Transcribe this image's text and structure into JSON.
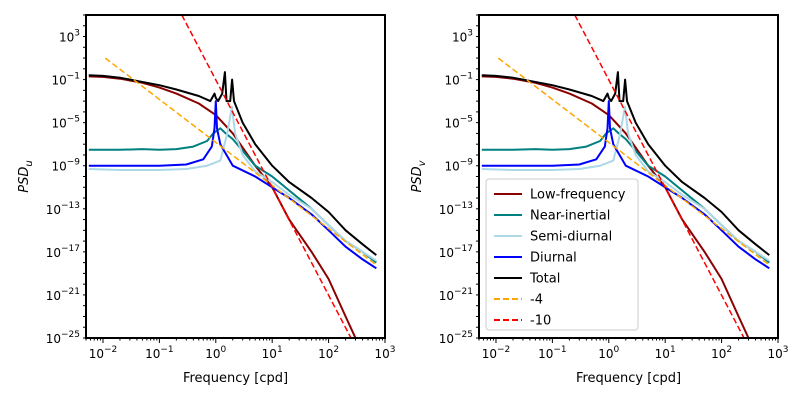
{
  "chart_data": [
    {
      "type": "line",
      "panel": "left",
      "xlabel": "Frequency [cpd]",
      "ylabel_base": "PSD",
      "ylabel_sub": "u",
      "xscale": "log",
      "yscale": "log",
      "xlim": [
        0.005,
        1000
      ],
      "ylim": [
        1e-25,
        100000.0
      ],
      "x_tick_labels": [
        {
          "value": 0.01,
          "base": "10",
          "exp": "−2"
        },
        {
          "value": 0.1,
          "base": "10",
          "exp": "−1"
        },
        {
          "value": 1,
          "base": "10",
          "exp": "0"
        },
        {
          "value": 10,
          "base": "10",
          "exp": "1"
        },
        {
          "value": 100,
          "base": "10",
          "exp": "2"
        },
        {
          "value": 1000,
          "base": "10",
          "exp": "3"
        }
      ],
      "y_tick_labels": [
        {
          "value": 1e-25,
          "base": "10",
          "exp": "−25"
        },
        {
          "value": 1e-21,
          "base": "10",
          "exp": "−21"
        },
        {
          "value": 1e-17,
          "base": "10",
          "exp": "−17"
        },
        {
          "value": 1e-13,
          "base": "10",
          "exp": "−13"
        },
        {
          "value": 1e-09,
          "base": "10",
          "exp": "−9"
        },
        {
          "value": 1e-05,
          "base": "10",
          "exp": "−5"
        },
        {
          "value": 0.1,
          "base": "10",
          "exp": "−1"
        },
        {
          "value": 1000,
          "base": "10",
          "exp": "3"
        }
      ],
      "legend": null,
      "series": [
        {
          "name": "Low-frequency",
          "color": "#8b0000",
          "style": "solid",
          "points": [
            [
              0.0056,
              0.2
            ],
            [
              0.01,
              0.18
            ],
            [
              0.02,
              0.12
            ],
            [
              0.05,
              0.05
            ],
            [
              0.1,
              0.018
            ],
            [
              0.2,
              0.005
            ],
            [
              0.5,
              0.0006
            ],
            [
              1,
              5e-05
            ],
            [
              2,
              1e-06
            ],
            [
              5,
              1e-09
            ],
            [
              10,
              1e-11
            ],
            [
              20,
              1e-14
            ],
            [
              50,
              1e-17
            ],
            [
              100,
              3e-20
            ],
            [
              200,
              1e-23
            ],
            [
              300,
              1e-25
            ]
          ]
        },
        {
          "name": "Near-inertial",
          "color": "#008080",
          "style": "solid",
          "points": [
            [
              0.0056,
              3e-08
            ],
            [
              0.02,
              3e-08
            ],
            [
              0.05,
              3.5e-08
            ],
            [
              0.1,
              3e-08
            ],
            [
              0.2,
              3.5e-08
            ],
            [
              0.4,
              6e-08
            ],
            [
              0.7,
              2e-07
            ],
            [
              0.9,
              1e-06
            ],
            [
              1.2,
              3e-06
            ],
            [
              1.5,
              1e-06
            ],
            [
              2,
              3e-07
            ],
            [
              5,
              1e-09
            ],
            [
              10,
              1e-10
            ],
            [
              20,
              5e-12
            ],
            [
              50,
              1e-13
            ],
            [
              100,
              3e-15
            ],
            [
              200,
              1e-16
            ],
            [
              400,
              1e-17
            ],
            [
              700,
              1e-18
            ]
          ]
        },
        {
          "name": "Semi-diurnal",
          "color": "#add8e6",
          "style": "solid",
          "points": [
            [
              0.0056,
              5e-10
            ],
            [
              0.02,
              4e-10
            ],
            [
              0.1,
              4e-10
            ],
            [
              0.3,
              5e-10
            ],
            [
              0.7,
              1e-09
            ],
            [
              1.2,
              3e-09
            ],
            [
              1.6,
              1e-06
            ],
            [
              1.93,
              0.0003
            ],
            [
              2.2,
              1e-06
            ],
            [
              3,
              1e-08
            ],
            [
              5,
              3e-10
            ],
            [
              10,
              3e-11
            ],
            [
              20,
              2e-12
            ],
            [
              50,
              1e-13
            ],
            [
              100,
              3e-15
            ],
            [
              200,
              1e-16
            ],
            [
              400,
              1e-17
            ],
            [
              700,
              1.5e-18
            ]
          ]
        },
        {
          "name": "Diurnal",
          "color": "#0000ff",
          "style": "solid",
          "points": [
            [
              0.0056,
              1e-09
            ],
            [
              0.02,
              1e-09
            ],
            [
              0.1,
              1e-09
            ],
            [
              0.3,
              1.3e-09
            ],
            [
              0.6,
              4e-09
            ],
            [
              0.85,
              6e-08
            ],
            [
              0.95,
              3e-06
            ],
            [
              1.0,
              0.001
            ],
            [
              1.05,
              3e-06
            ],
            [
              1.2,
              1e-07
            ],
            [
              2,
              1e-09
            ],
            [
              5,
              1e-10
            ],
            [
              10,
              1e-11
            ],
            [
              20,
              1e-12
            ],
            [
              50,
              3e-14
            ],
            [
              100,
              1e-15
            ],
            [
              200,
              3e-17
            ],
            [
              400,
              2e-18
            ],
            [
              700,
              3e-19
            ]
          ]
        },
        {
          "name": "Total",
          "color": "#000000",
          "style": "solid",
          "points": [
            [
              0.0056,
              0.25
            ],
            [
              0.01,
              0.22
            ],
            [
              0.02,
              0.15
            ],
            [
              0.05,
              0.06
            ],
            [
              0.1,
              0.03
            ],
            [
              0.2,
              0.012
            ],
            [
              0.5,
              0.003
            ],
            [
              0.8,
              0.001
            ],
            [
              0.95,
              0.005
            ],
            [
              1.0,
              0.002
            ],
            [
              1.1,
              0.001
            ],
            [
              1.3,
              0.005
            ],
            [
              1.45,
              0.5
            ],
            [
              1.55,
              0.001
            ],
            [
              1.8,
              0.001
            ],
            [
              1.95,
              0.1
            ],
            [
              2.1,
              0.001
            ],
            [
              3,
              1e-05
            ],
            [
              5,
              1e-07
            ],
            [
              10,
              1e-09
            ],
            [
              20,
              3e-11
            ],
            [
              50,
              1e-12
            ],
            [
              100,
              5e-14
            ],
            [
              200,
              1e-15
            ],
            [
              400,
              5e-17
            ],
            [
              700,
              5e-18
            ]
          ]
        },
        {
          "name": "-4",
          "color": "#ffa500",
          "style": "dashed",
          "points": [
            [
              0.011,
              10
            ],
            [
              700,
              6e-19
            ]
          ]
        },
        {
          "name": "-10",
          "color": "#ff0000",
          "style": "dashed",
          "points": [
            [
              0.25,
              100000.0
            ],
            [
              250,
              1e-25
            ]
          ]
        }
      ]
    },
    {
      "type": "line",
      "panel": "right",
      "xlabel": "Frequency [cpd]",
      "ylabel_base": "PSD",
      "ylabel_sub": "v",
      "xscale": "log",
      "yscale": "log",
      "xlim": [
        0.005,
        1000
      ],
      "ylim": [
        1e-25,
        100000.0
      ],
      "x_tick_labels": [
        {
          "value": 0.01,
          "base": "10",
          "exp": "−2"
        },
        {
          "value": 0.1,
          "base": "10",
          "exp": "−1"
        },
        {
          "value": 1,
          "base": "10",
          "exp": "0"
        },
        {
          "value": 10,
          "base": "10",
          "exp": "1"
        },
        {
          "value": 100,
          "base": "10",
          "exp": "2"
        },
        {
          "value": 1000,
          "base": "10",
          "exp": "3"
        }
      ],
      "y_tick_labels": [
        {
          "value": 1e-25,
          "base": "10",
          "exp": "−25"
        },
        {
          "value": 1e-21,
          "base": "10",
          "exp": "−21"
        },
        {
          "value": 1e-17,
          "base": "10",
          "exp": "−17"
        },
        {
          "value": 1e-13,
          "base": "10",
          "exp": "−13"
        },
        {
          "value": 1e-09,
          "base": "10",
          "exp": "−9"
        },
        {
          "value": 1e-05,
          "base": "10",
          "exp": "−5"
        },
        {
          "value": 0.1,
          "base": "10",
          "exp": "−1"
        },
        {
          "value": 1000,
          "base": "10",
          "exp": "3"
        }
      ],
      "legend": "lower-left",
      "series": [
        {
          "name": "Low-frequency",
          "color": "#8b0000",
          "style": "solid",
          "points": [
            [
              0.0056,
              0.2
            ],
            [
              0.01,
              0.18
            ],
            [
              0.02,
              0.12
            ],
            [
              0.05,
              0.05
            ],
            [
              0.1,
              0.018
            ],
            [
              0.2,
              0.005
            ],
            [
              0.5,
              0.0006
            ],
            [
              1,
              5e-05
            ],
            [
              2,
              1e-06
            ],
            [
              5,
              1e-09
            ],
            [
              10,
              1e-11
            ],
            [
              20,
              1e-14
            ],
            [
              50,
              1e-17
            ],
            [
              100,
              3e-20
            ],
            [
              200,
              1e-23
            ],
            [
              300,
              1e-25
            ]
          ]
        },
        {
          "name": "Near-inertial",
          "color": "#008080",
          "style": "solid",
          "points": [
            [
              0.0056,
              3e-08
            ],
            [
              0.02,
              3e-08
            ],
            [
              0.05,
              3.5e-08
            ],
            [
              0.1,
              3e-08
            ],
            [
              0.2,
              3.5e-08
            ],
            [
              0.4,
              6e-08
            ],
            [
              0.7,
              2e-07
            ],
            [
              0.9,
              1e-06
            ],
            [
              1.2,
              3e-06
            ],
            [
              1.5,
              1e-06
            ],
            [
              2,
              3e-07
            ],
            [
              5,
              1e-09
            ],
            [
              10,
              1e-10
            ],
            [
              20,
              5e-12
            ],
            [
              50,
              1e-13
            ],
            [
              100,
              3e-15
            ],
            [
              200,
              1e-16
            ],
            [
              400,
              1e-17
            ],
            [
              700,
              1e-18
            ]
          ]
        },
        {
          "name": "Semi-diurnal",
          "color": "#add8e6",
          "style": "solid",
          "points": [
            [
              0.0056,
              5e-10
            ],
            [
              0.02,
              4e-10
            ],
            [
              0.1,
              4e-10
            ],
            [
              0.3,
              5e-10
            ],
            [
              0.7,
              1e-09
            ],
            [
              1.2,
              3e-09
            ],
            [
              1.6,
              1e-06
            ],
            [
              1.93,
              0.0003
            ],
            [
              2.2,
              1e-06
            ],
            [
              3,
              1e-08
            ],
            [
              5,
              3e-10
            ],
            [
              10,
              3e-11
            ],
            [
              20,
              2e-12
            ],
            [
              50,
              1e-13
            ],
            [
              100,
              3e-15
            ],
            [
              200,
              1e-16
            ],
            [
              400,
              1e-17
            ],
            [
              700,
              1.5e-18
            ]
          ]
        },
        {
          "name": "Diurnal",
          "color": "#0000ff",
          "style": "solid",
          "points": [
            [
              0.0056,
              1e-09
            ],
            [
              0.02,
              1e-09
            ],
            [
              0.1,
              1e-09
            ],
            [
              0.3,
              1.3e-09
            ],
            [
              0.6,
              4e-09
            ],
            [
              0.85,
              6e-08
            ],
            [
              0.95,
              3e-06
            ],
            [
              1.0,
              0.001
            ],
            [
              1.05,
              3e-06
            ],
            [
              1.2,
              1e-07
            ],
            [
              2,
              1e-09
            ],
            [
              5,
              1e-10
            ],
            [
              10,
              1e-11
            ],
            [
              20,
              1e-12
            ],
            [
              50,
              3e-14
            ],
            [
              100,
              1e-15
            ],
            [
              200,
              3e-17
            ],
            [
              400,
              2e-18
            ],
            [
              700,
              3e-19
            ]
          ]
        },
        {
          "name": "Total",
          "color": "#000000",
          "style": "solid",
          "points": [
            [
              0.0056,
              0.25
            ],
            [
              0.01,
              0.22
            ],
            [
              0.02,
              0.15
            ],
            [
              0.05,
              0.06
            ],
            [
              0.1,
              0.03
            ],
            [
              0.2,
              0.012
            ],
            [
              0.5,
              0.003
            ],
            [
              0.8,
              0.001
            ],
            [
              0.95,
              0.005
            ],
            [
              1.0,
              0.002
            ],
            [
              1.1,
              0.001
            ],
            [
              1.3,
              0.005
            ],
            [
              1.45,
              0.5
            ],
            [
              1.55,
              0.001
            ],
            [
              1.8,
              0.001
            ],
            [
              1.95,
              0.1
            ],
            [
              2.1,
              0.001
            ],
            [
              3,
              1e-05
            ],
            [
              5,
              1e-07
            ],
            [
              10,
              1e-09
            ],
            [
              20,
              3e-11
            ],
            [
              50,
              1e-12
            ],
            [
              100,
              5e-14
            ],
            [
              200,
              1e-15
            ],
            [
              400,
              5e-17
            ],
            [
              700,
              5e-18
            ]
          ]
        },
        {
          "name": "-4",
          "color": "#ffa500",
          "style": "dashed",
          "points": [
            [
              0.011,
              10
            ],
            [
              700,
              6e-19
            ]
          ]
        },
        {
          "name": "-10",
          "color": "#ff0000",
          "style": "dashed",
          "points": [
            [
              0.25,
              100000.0
            ],
            [
              250,
              1e-25
            ]
          ]
        }
      ]
    }
  ]
}
